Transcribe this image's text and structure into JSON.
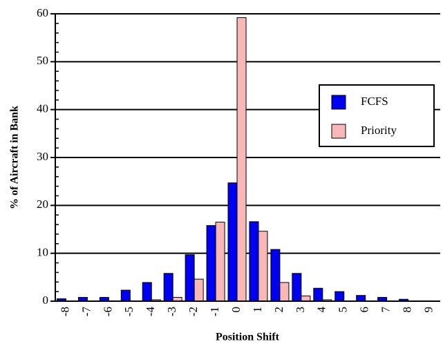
{
  "chart_data": {
    "type": "bar",
    "x_label": "Position Shift",
    "y_label": "% of Aircraft in Bank",
    "categories": [
      "-8",
      "-7",
      "-6",
      "-5",
      "-4",
      "-3",
      "-2",
      "-1",
      "0",
      "1",
      "2",
      "3",
      "4",
      "5",
      "6",
      "7",
      "8",
      "9"
    ],
    "series": [
      {
        "name": "FCFS",
        "color": "#0000f0",
        "values": [
          0.5,
          0.8,
          0.8,
          2.3,
          3.9,
          5.8,
          9.7,
          15.8,
          24.7,
          16.6,
          10.8,
          5.8,
          2.7,
          2.0,
          1.2,
          0.8,
          0.4,
          0
        ]
      },
      {
        "name": "Priority",
        "color": "#f8b8b8",
        "values": [
          0,
          0,
          0,
          0,
          0.3,
          0.8,
          4.6,
          16.5,
          59.2,
          14.6,
          3.9,
          1.1,
          0.3,
          0,
          0,
          0,
          0,
          0
        ]
      }
    ],
    "ylim": [
      0,
      60
    ],
    "yticks": [
      0,
      10,
      20,
      30,
      40,
      50,
      60
    ],
    "minor_yticks": [
      2,
      4,
      6,
      8,
      12,
      14,
      16,
      18,
      22,
      24,
      26,
      28,
      32,
      34,
      36,
      38,
      42,
      44,
      46,
      48,
      52,
      54,
      56,
      58
    ],
    "grid": true
  }
}
